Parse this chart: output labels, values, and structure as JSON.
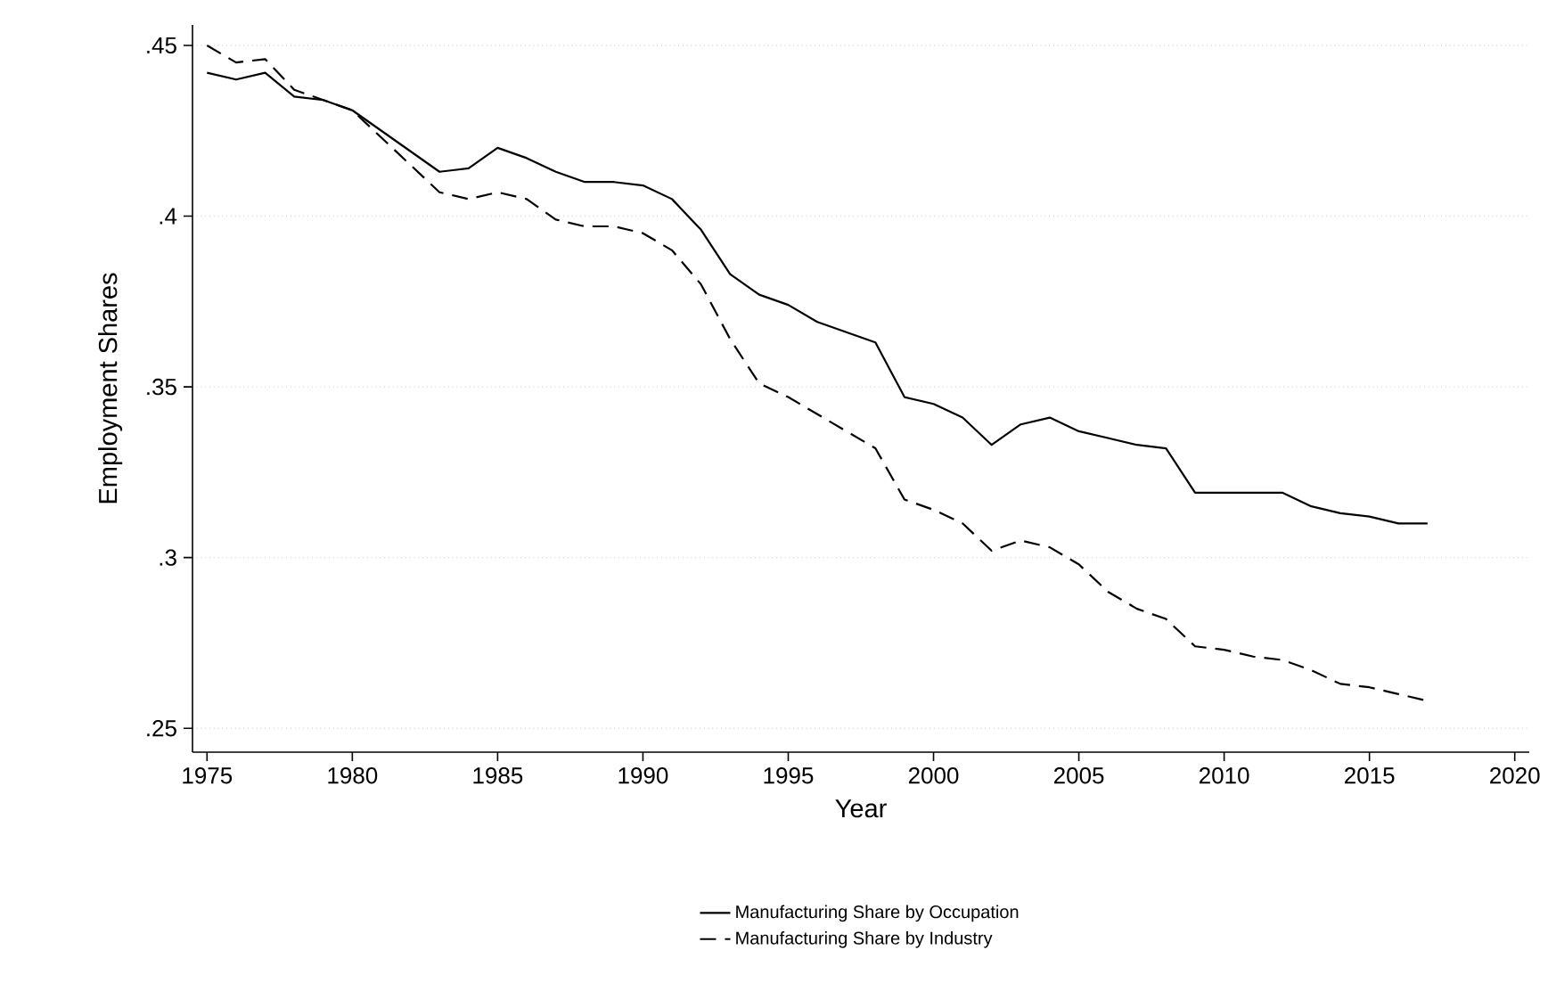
{
  "chart_data": {
    "type": "line",
    "xlabel": "Year",
    "ylabel": "Employment Shares",
    "x": [
      1975,
      1976,
      1977,
      1978,
      1979,
      1980,
      1981,
      1982,
      1983,
      1984,
      1985,
      1986,
      1987,
      1988,
      1989,
      1990,
      1991,
      1992,
      1993,
      1994,
      1995,
      1996,
      1997,
      1998,
      1999,
      2000,
      2001,
      2002,
      2003,
      2004,
      2005,
      2006,
      2007,
      2008,
      2009,
      2010,
      2011,
      2012,
      2013,
      2014,
      2015,
      2016,
      2017
    ],
    "series": [
      {
        "name": "Manufacturing Share by Occupation",
        "color": "#000000",
        "line_style": "solid",
        "values": [
          0.442,
          0.44,
          0.442,
          0.435,
          0.434,
          0.431,
          0.425,
          0.419,
          0.413,
          0.414,
          0.42,
          0.417,
          0.413,
          0.41,
          0.41,
          0.409,
          0.405,
          0.396,
          0.383,
          0.377,
          0.374,
          0.369,
          0.366,
          0.363,
          0.347,
          0.345,
          0.341,
          0.333,
          0.339,
          0.341,
          0.337,
          0.335,
          0.333,
          0.332,
          0.319,
          0.319,
          0.319,
          0.319,
          0.315,
          0.313,
          0.312,
          0.31,
          0.31
        ]
      },
      {
        "name": "Manufacturing Share by Industry",
        "color": "#000000",
        "line_style": "dashed",
        "values": [
          0.45,
          0.445,
          0.446,
          0.437,
          0.434,
          0.431,
          0.423,
          0.415,
          0.407,
          0.405,
          0.407,
          0.405,
          0.399,
          0.397,
          0.397,
          0.395,
          0.39,
          0.38,
          0.364,
          0.351,
          0.347,
          0.342,
          0.337,
          0.332,
          0.317,
          0.314,
          0.31,
          0.302,
          0.305,
          0.303,
          0.298,
          0.29,
          0.285,
          0.282,
          0.274,
          0.273,
          0.271,
          0.27,
          0.267,
          0.263,
          0.262,
          0.26,
          0.258
        ]
      }
    ],
    "xlim": [
      1974.5,
      2020.5
    ],
    "ylim": [
      0.243,
      0.456
    ],
    "xticks": [
      1975,
      1980,
      1985,
      1990,
      1995,
      2000,
      2005,
      2010,
      2015,
      2020
    ],
    "yticks": [
      {
        "value": 0.25,
        "label": ".25"
      },
      {
        "value": 0.3,
        "label": ".3"
      },
      {
        "value": 0.35,
        "label": ".35"
      },
      {
        "value": 0.4,
        "label": ".4"
      },
      {
        "value": 0.45,
        "label": ".45"
      }
    ],
    "grid": "y",
    "legend": "bottom",
    "marker": "none"
  }
}
